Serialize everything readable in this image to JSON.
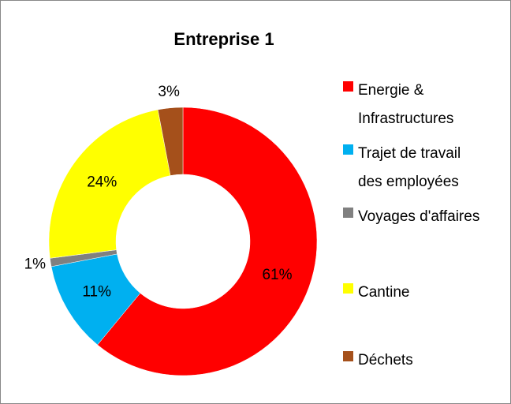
{
  "chart_data": {
    "type": "donut",
    "title": "Entreprise 1",
    "categories": [
      "Energie & Infrastructures",
      "Trajet de travail des employées",
      "Voyages d'affaires",
      "Cantine",
      "Déchets"
    ],
    "values": [
      61,
      11,
      1,
      24,
      3
    ],
    "value_labels": [
      "61%",
      "11%",
      "1%",
      "24%",
      "3%"
    ],
    "colors": [
      "#ff0000",
      "#00b0f0",
      "#808080",
      "#ffff00",
      "#a5501b"
    ],
    "legend": "right"
  }
}
